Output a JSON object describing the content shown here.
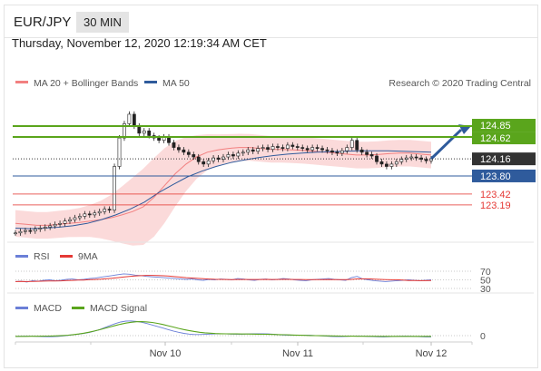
{
  "header": {
    "pair": "EUR/JPY",
    "timeframe": "30 MIN",
    "datetime": "Thursday, November 12, 2020 12:19:34 AM CET"
  },
  "legend": {
    "ma20": "MA 20 + Bollinger Bands",
    "ma50": "MA 50",
    "credit": "Research © 2020 Trading Central",
    "rsi": "RSI",
    "rsi_ma": "9MA",
    "macd": "MACD",
    "macd_signal": "MACD Signal"
  },
  "colors": {
    "ma20": "#f28080",
    "ma50": "#2f5b9c",
    "green": "#5aa51c",
    "red": "#e53935",
    "candle": "#222222",
    "band": "#fad4d4",
    "rsi": "#6b7fd7",
    "macd_sig": "#5aa51c"
  },
  "levels": [
    {
      "label": "124.85",
      "value": 124.85,
      "color": "#5aa51c"
    },
    {
      "label": "124.62",
      "value": 124.62,
      "color": "#5aa51c"
    },
    {
      "label": "124.16",
      "value": 124.16,
      "color": "#333333"
    },
    {
      "label": "123.80",
      "value": 123.8,
      "color": "#2f5b9c"
    },
    {
      "label": "123.42",
      "value": 123.42,
      "color": "#e53935"
    },
    {
      "label": "123.19",
      "value": 123.19,
      "color": "#e53935"
    }
  ],
  "rsi_levels": [
    "70",
    "50",
    "30"
  ],
  "macd_zero": "0",
  "xticks": [
    "Nov 10",
    "Nov 11",
    "Nov 12"
  ],
  "chart_data": {
    "type": "line",
    "title": "EUR/JPY 30 MIN",
    "ylim": [
      122.5,
      125.5
    ],
    "x": [
      "Nov 10",
      "Nov 11",
      "Nov 12"
    ],
    "closes": [
      122.6,
      122.63,
      122.65,
      122.64,
      122.68,
      122.7,
      122.72,
      122.75,
      122.78,
      122.8,
      122.85,
      122.88,
      122.92,
      122.95,
      123.0,
      122.98,
      123.02,
      123.05,
      123.1,
      123.08,
      124.0,
      124.6,
      124.9,
      125.1,
      124.85,
      124.7,
      124.75,
      124.65,
      124.6,
      124.55,
      124.62,
      124.5,
      124.4,
      124.35,
      124.3,
      124.25,
      124.2,
      124.1,
      124.05,
      124.12,
      124.18,
      124.15,
      124.2,
      124.25,
      124.22,
      124.28,
      124.3,
      124.35,
      124.32,
      124.38,
      124.4,
      124.36,
      124.42,
      124.4,
      124.38,
      124.45,
      124.42,
      124.4,
      124.38,
      124.35,
      124.4,
      124.38,
      124.35,
      124.33,
      124.3,
      124.28,
      124.33,
      124.4,
      124.55,
      124.35,
      124.3,
      124.25,
      124.22,
      124.1,
      124.05,
      124.0,
      124.05,
      124.1,
      124.15,
      124.18,
      124.2,
      124.18,
      124.15,
      124.12,
      124.16
    ],
    "ma20": [
      122.8,
      122.78,
      122.76,
      122.76,
      122.78,
      122.8,
      122.82,
      122.85,
      122.88,
      122.92,
      122.98,
      123.05,
      123.15,
      123.35,
      123.6,
      123.85,
      124.05,
      124.2,
      124.3,
      124.35,
      124.38,
      124.4,
      124.4,
      124.38,
      124.36,
      124.36,
      124.35,
      124.34,
      124.32,
      124.3,
      124.28,
      124.26,
      124.24,
      124.24,
      124.25,
      124.27,
      124.28,
      124.28,
      124.26,
      124.24
    ],
    "ma50": [
      122.7,
      122.69,
      122.7,
      122.72,
      122.75,
      122.8,
      122.88,
      122.98,
      123.1,
      123.25,
      123.45,
      123.62,
      123.78,
      123.9,
      124.0,
      124.08,
      124.14,
      124.19,
      124.23,
      124.26,
      124.28,
      124.3,
      124.31,
      124.32,
      124.33,
      124.33,
      124.33,
      124.32,
      124.31,
      124.3
    ],
    "series": [
      {
        "name": "MA 20 + Bollinger Bands",
        "color": "#f28080"
      },
      {
        "name": "MA 50",
        "color": "#2f5b9c"
      }
    ],
    "rsi": {
      "ylim": [
        30,
        70
      ],
      "levels": [
        70,
        50,
        30
      ]
    },
    "macd": {
      "zero": 0
    }
  }
}
